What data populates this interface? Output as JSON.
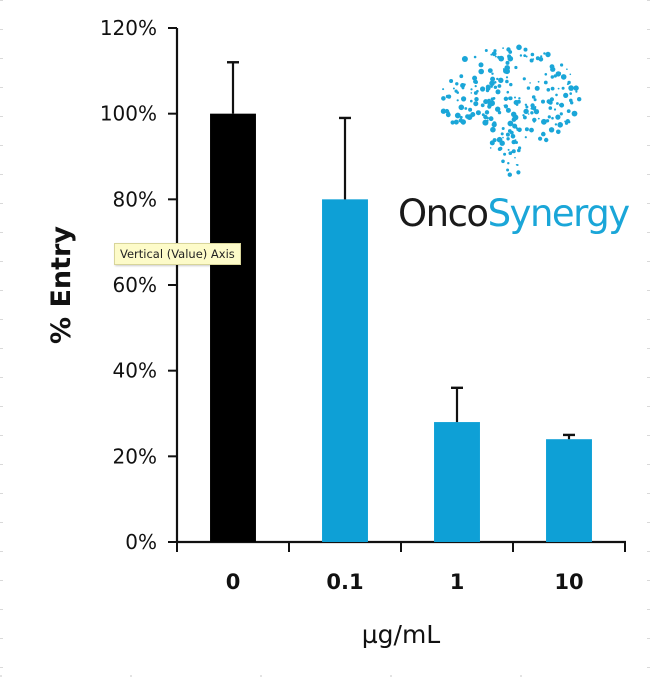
{
  "chart_data": {
    "type": "bar",
    "title": "",
    "xlabel": "µg/mL",
    "ylabel": "% Entry",
    "ylim": [
      0,
      1.2
    ],
    "yticks": [
      0,
      0.2,
      0.4,
      0.6,
      0.8,
      1.0,
      1.2
    ],
    "ytick_labels": [
      "0%",
      "20%",
      "40%",
      "60%",
      "80%",
      "100%",
      "120%"
    ],
    "categories": [
      "0",
      "0.1",
      "1",
      "10"
    ],
    "values": [
      1.0,
      0.8,
      0.28,
      0.24
    ],
    "error_upper": [
      0.12,
      0.19,
      0.08,
      0.01
    ],
    "bar_colors": [
      "#000000",
      "#0ea0d6",
      "#0ea0d6",
      "#0ea0d6"
    ],
    "grid": false,
    "legend": "none"
  },
  "tooltip": {
    "text": "Vertical (Value) Axis"
  },
  "logo": {
    "name_part1": "Onco",
    "name_part2": "Synergy",
    "color_dark": "#1a1a1a",
    "color_accent": "#1aa6d8",
    "icon": "brain-dots-icon"
  }
}
